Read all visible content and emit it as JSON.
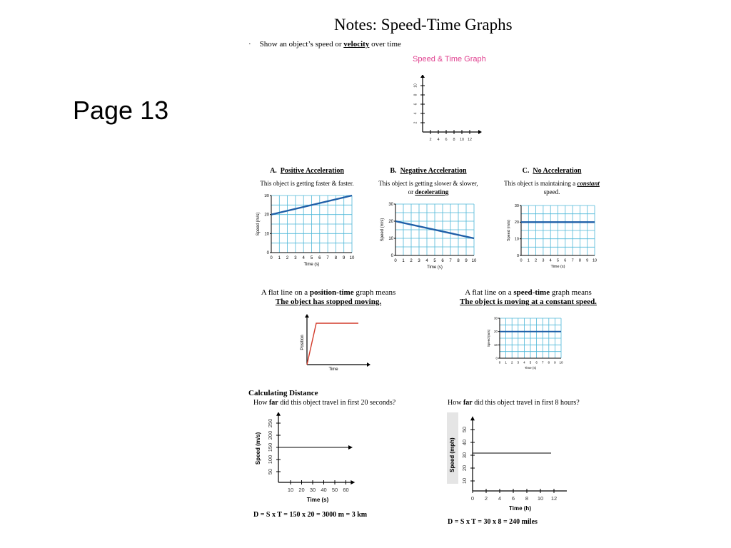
{
  "page_label": "Page 13",
  "title": "Notes: Speed-Time Graphs",
  "bullet": {
    "pre": "Show an object’s speed or ",
    "term": "velocity",
    "post": " over time"
  },
  "speed_time_sketch": {
    "title": "Speed & Time Graph",
    "x_ticks": [
      "2",
      "4",
      "6",
      "8",
      "10",
      "12"
    ],
    "y_ticks": [
      "2",
      "4",
      "6",
      "8",
      "10"
    ],
    "title_color": "#e0408f"
  },
  "graph_a": {
    "letter": "A.",
    "name": "Positive Acceleration",
    "desc": "This object is getting faster & faster."
  },
  "graph_b": {
    "letter": "B.",
    "name": "Negative Acceleration",
    "desc_line1": "This object is getting slower & slower,",
    "desc_or": "or ",
    "desc_term": "decelerating"
  },
  "graph_c": {
    "letter": "C.",
    "name": "No Acceleration",
    "desc_pre": "This object is maintaining a ",
    "desc_term": "constant",
    "desc_line2": "speed."
  },
  "axis_common": {
    "ylabel": "Speed (m/s)",
    "xlabel": "Time (s)",
    "x_ticks": [
      "0",
      "1",
      "2",
      "3",
      "4",
      "5",
      "6",
      "7",
      "8",
      "9",
      "10"
    ],
    "y_ticks": [
      "0",
      "10",
      "20",
      "30"
    ]
  },
  "grid_colors": {
    "grid": "#4fb8d8",
    "line": "#1f5fa8",
    "red": "#d23a2a"
  },
  "chart_data": [
    {
      "type": "line",
      "series": [
        {
          "values": [
            [
              0,
              20
            ],
            [
              10,
              30
            ]
          ]
        }
      ],
      "xlabel": "Time (s)",
      "ylabel": "Speed (m/s)",
      "xlim": [
        0,
        10
      ],
      "ylim": [
        0,
        30
      ]
    },
    {
      "type": "line",
      "series": [
        {
          "values": [
            [
              0,
              20
            ],
            [
              10,
              10
            ]
          ]
        }
      ],
      "xlabel": "Time (s)",
      "ylabel": "Speed (m/s)",
      "xlim": [
        0,
        10
      ],
      "ylim": [
        0,
        30
      ]
    },
    {
      "type": "line",
      "series": [
        {
          "values": [
            [
              0,
              20
            ],
            [
              10,
              20
            ]
          ]
        }
      ],
      "xlabel": "Time (s)",
      "ylabel": "Speed (m/s)",
      "xlim": [
        0,
        10
      ],
      "ylim": [
        0,
        30
      ]
    }
  ],
  "flat_pos": {
    "pre": "A flat line on a ",
    "term": "position-time",
    "post": " graph means",
    "answer": "The object has stopped moving.",
    "ylabel": "Position",
    "xlabel": "Time"
  },
  "flat_speed": {
    "pre": "A flat line on a ",
    "term": "speed-time",
    "post": " graph means",
    "answer": "The object is moving at a constant speed."
  },
  "calc": {
    "heading": "Calculating Distance",
    "q1_pre": "How ",
    "q1_term": "far",
    "q1_post": " did this object travel in first 20 seconds?",
    "q2_pre": "How ",
    "q2_term": "far",
    "q2_post": " did this object travel in first 8 hours?",
    "g1": {
      "ylabel": "Speed (m/s)",
      "xlabel": "Time (s)",
      "x_ticks": [
        "10",
        "20",
        "30",
        "40",
        "50",
        "60"
      ],
      "y_ticks": [
        "50",
        "100",
        "150",
        "200",
        "250"
      ]
    },
    "g2": {
      "ylabel": "Speed (mph)",
      "xlabel": "Time (h)",
      "x_ticks": [
        "0",
        "2",
        "4",
        "6",
        "8",
        "10",
        "12"
      ],
      "y_ticks": [
        "10",
        "20",
        "30",
        "40",
        "50"
      ]
    },
    "formula1": "D = S x T = 150 x 20 = 3000 m = 3 km",
    "formula2": "D = S x T = 30 x 8 = 240 miles"
  }
}
